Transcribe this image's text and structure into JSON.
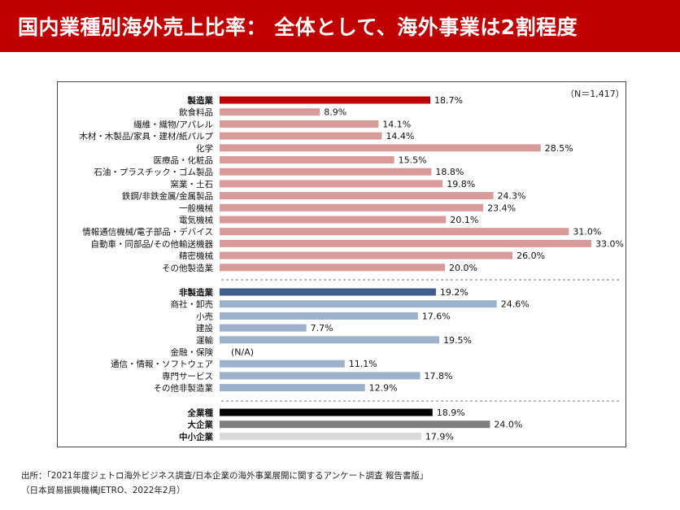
{
  "header": {
    "title": "国内業種別海外売上比率： 全体として、海外事業は2割程度"
  },
  "note": {
    "n": "（N＝1,417）"
  },
  "source": {
    "line1": "出所：「2021年度ジェトロ海外ビジネス調査/日本企業の海外事業展開に関するアンケート調査 報告書版」",
    "line2": "（日本貿易振興機構JETRO、2022年2月）"
  },
  "chart_data": {
    "type": "bar",
    "orientation": "horizontal",
    "unit": "%",
    "grid": false,
    "groups": [
      {
        "items": [
          {
            "label": "製造業",
            "value": 18.7,
            "bold": true,
            "color": "#c00000"
          },
          {
            "label": "飲食料品",
            "value": 8.9,
            "color": "#d99a9a"
          },
          {
            "label": "繊維・織物/アパレル",
            "value": 14.1,
            "color": "#d99a9a"
          },
          {
            "label": "木材・木製品/家具・建材/紙パルプ",
            "value": 14.4,
            "color": "#d99a9a"
          },
          {
            "label": "化学",
            "value": 28.5,
            "color": "#d99a9a"
          },
          {
            "label": "医療品・化粧品",
            "value": 15.5,
            "color": "#d99a9a"
          },
          {
            "label": "石油・プラスチック・ゴム製品",
            "value": 18.8,
            "color": "#d99a9a"
          },
          {
            "label": "窯業・土石",
            "value": 19.8,
            "color": "#d99a9a"
          },
          {
            "label": "鉄鋼/非鉄金属/金属製品",
            "value": 24.3,
            "color": "#d99a9a"
          },
          {
            "label": "一般機械",
            "value": 23.4,
            "color": "#d99a9a"
          },
          {
            "label": "電気機械",
            "value": 20.1,
            "color": "#d99a9a"
          },
          {
            "label": "情報通信機械/電子部品・デバイス",
            "value": 31.0,
            "color": "#d99a9a"
          },
          {
            "label": "自動車・同部品/その他輸送機器",
            "value": 33.0,
            "color": "#d99a9a"
          },
          {
            "label": "精密機械",
            "value": 26.0,
            "color": "#d99a9a"
          },
          {
            "label": "その他製造業",
            "value": 20.0,
            "color": "#d99a9a"
          }
        ]
      },
      {
        "items": [
          {
            "label": "非製造業",
            "value": 19.2,
            "bold": true,
            "color": "#3f5e8c"
          },
          {
            "label": "商社・卸売",
            "value": 24.6,
            "color": "#9db0cc"
          },
          {
            "label": "小売",
            "value": 17.6,
            "color": "#9db0cc"
          },
          {
            "label": "建設",
            "value": 7.7,
            "color": "#9db0cc"
          },
          {
            "label": "運輸",
            "value": 19.5,
            "color": "#9db0cc"
          },
          {
            "label": "金融・保険",
            "value": null,
            "na_label": "(N/A)",
            "color": "#9db0cc"
          },
          {
            "label": "通信・情報・ソフトウェア",
            "value": 11.1,
            "color": "#9db0cc"
          },
          {
            "label": "専門サービス",
            "value": 17.8,
            "color": "#9db0cc"
          },
          {
            "label": "その他非製造業",
            "value": 12.9,
            "color": "#9db0cc"
          }
        ]
      },
      {
        "items": [
          {
            "label": "全業種",
            "value": 18.9,
            "bold": true,
            "color": "#000000"
          },
          {
            "label": "大企業",
            "value": 24.0,
            "bold": true,
            "color": "#808080"
          },
          {
            "label": "中小企業",
            "value": 17.9,
            "bold": true,
            "color": "#d9d9d9"
          }
        ]
      }
    ]
  }
}
